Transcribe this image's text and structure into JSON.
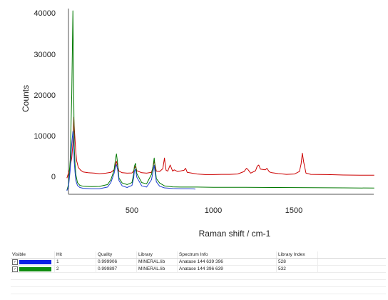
{
  "chart_data": {
    "type": "line",
    "title": "",
    "xlabel": "Raman shift / cm-1",
    "ylabel": "Counts",
    "xlim": [
      100,
      2000
    ],
    "ylim": [
      -4000,
      41000
    ],
    "x_ticks": [
      "500",
      "1000",
      "1500"
    ],
    "y_ticks": [
      "0",
      "10000",
      "20000",
      "30000",
      "40000"
    ],
    "grid": false,
    "series": [
      {
        "color": "#cc0000",
        "x": [
          100,
          115,
          130,
          137,
          142,
          146,
          150,
          155,
          160,
          170,
          185,
          200,
          230,
          270,
          300,
          340,
          370,
          390,
          400,
          405,
          412,
          420,
          440,
          470,
          500,
          510,
          515,
          522,
          530,
          560,
          590,
          620,
          630,
          637,
          642,
          650,
          670,
          690,
          700,
          705,
          710,
          720,
          735,
          745,
          750,
          760,
          780,
          820,
          830,
          840,
          900,
          950,
          1000,
          1050,
          1100,
          1150,
          1190,
          1205,
          1215,
          1230,
          1260,
          1270,
          1280,
          1290,
          1320,
          1330,
          1345,
          1360,
          1400,
          1450,
          1500,
          1530,
          1540,
          1548,
          1556,
          1570,
          1600,
          1700,
          1800,
          1900,
          1990
        ],
        "y": [
          -400,
          1500,
          4500,
          8000,
          14500,
          11500,
          9000,
          6000,
          3800,
          2200,
          1500,
          1100,
          900,
          800,
          650,
          800,
          1000,
          1600,
          3000,
          3700,
          2600,
          1300,
          900,
          800,
          850,
          1300,
          2000,
          2500,
          1400,
          900,
          800,
          1000,
          2300,
          3800,
          2800,
          1300,
          1200,
          1900,
          4500,
          2800,
          1500,
          1300,
          2800,
          1800,
          1300,
          1600,
          1200,
          1500,
          2000,
          1000,
          600,
          450,
          450,
          500,
          500,
          600,
          1200,
          2000,
          1600,
          800,
          1400,
          2500,
          2800,
          1800,
          1600,
          2000,
          1100,
          900,
          700,
          500,
          600,
          1200,
          3000,
          5700,
          3500,
          800,
          500,
          450,
          350,
          300,
          300
        ]
      },
      {
        "color": "#007800",
        "x": [
          100,
          110,
          120,
          130,
          137,
          142,
          145,
          150,
          155,
          165,
          180,
          200,
          250,
          300,
          350,
          370,
          390,
          400,
          405,
          412,
          420,
          440,
          470,
          500,
          510,
          515,
          522,
          530,
          560,
          590,
          620,
          630,
          637,
          642,
          650,
          670,
          700,
          750,
          800,
          900,
          1000,
          1200,
          1400,
          1600,
          1800,
          1990
        ],
        "y": [
          -3400,
          -2000,
          4000,
          20000,
          40500,
          20000,
          7000,
          3000,
          500,
          -1500,
          -2200,
          -2400,
          -2500,
          -2450,
          -2000,
          -800,
          1500,
          4500,
          5500,
          3200,
          -400,
          -1600,
          -2000,
          -1500,
          500,
          2500,
          3200,
          700,
          -1500,
          -1800,
          500,
          2500,
          4500,
          2300,
          -500,
          -1600,
          -2300,
          -2550,
          -2600,
          -2600,
          -2650,
          -2650,
          -2700,
          -2750,
          -2800,
          -2850
        ]
      },
      {
        "color": "#1f3fcf",
        "x": [
          100,
          110,
          120,
          130,
          137,
          142,
          145,
          150,
          155,
          165,
          180,
          200,
          250,
          300,
          350,
          370,
          390,
          400,
          405,
          412,
          420,
          440,
          470,
          500,
          510,
          515,
          522,
          530,
          560,
          590,
          620,
          630,
          637,
          642,
          650,
          670,
          700,
          750,
          800,
          850,
          880,
          890
        ],
        "y": [
          -3500,
          -2500,
          1500,
          8000,
          11000,
          7000,
          3500,
          1000,
          -1000,
          -2200,
          -2700,
          -2900,
          -3000,
          -3000,
          -2600,
          -1500,
          700,
          2500,
          2900,
          1700,
          -1000,
          -2300,
          -2700,
          -2200,
          -500,
          1200,
          1800,
          -200,
          -2300,
          -2600,
          -800,
          1200,
          2700,
          1100,
          -1300,
          -2400,
          -2800,
          -2950,
          -3000,
          -3000,
          -3050,
          -3100
        ]
      }
    ]
  },
  "results": {
    "headers": {
      "visible": "Visible",
      "hit": "Hit",
      "quality": "Quality",
      "library": "Library",
      "info": "Spectrum Info",
      "index": "Library Index"
    },
    "rows": [
      {
        "swatch_color": "#0a1fe6",
        "hit": "1",
        "quality": "0.999906",
        "library": "MINERAL.lib",
        "info": "Anatase  144 639 396",
        "index": "528"
      },
      {
        "swatch_color": "#0f8c0f",
        "hit": "2",
        "quality": "0.999897",
        "library": "MINERAL.lib",
        "info": "Anatase  144 396 639",
        "index": "532"
      }
    ],
    "check_glyph": "✓"
  }
}
